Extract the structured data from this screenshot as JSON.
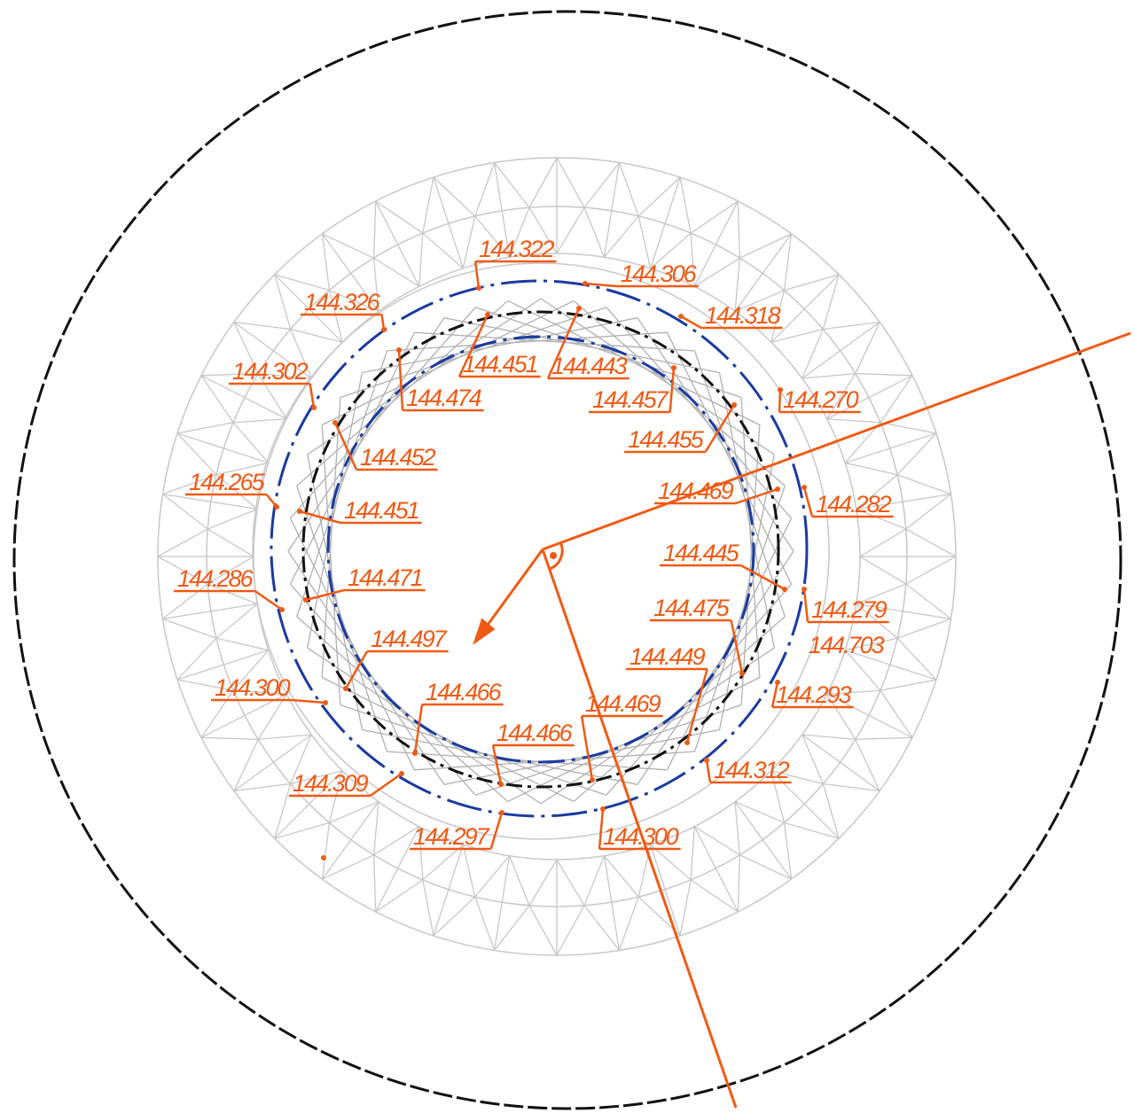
{
  "elevations": [
    "144.322",
    "144.306",
    "144.318",
    "144.326",
    "144.302",
    "144.270",
    "144.265",
    "144.282",
    "144.286",
    "144.279",
    "144.703",
    "144.300",
    "144.293",
    "144.309",
    "144.312",
    "144.297",
    "144.300",
    "144.451",
    "144.443",
    "144.474",
    "144.457",
    "144.455",
    "144.452",
    "144.469",
    "144.451",
    "144.445",
    "144.471",
    "144.475",
    "144.497",
    "144.449",
    "144.466",
    "144.469",
    "144.466"
  ]
}
